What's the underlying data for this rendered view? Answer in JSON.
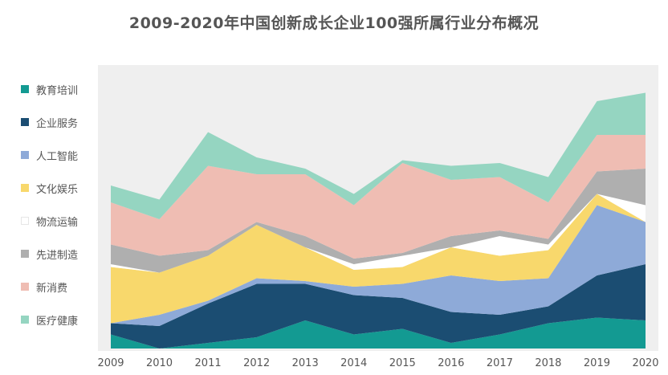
{
  "chart_data": {
    "type": "area",
    "stacked": true,
    "title": "2009-2020年中国创新成长企业100强所属行业分布概况",
    "xlabel": "",
    "ylabel": "",
    "categories": [
      "2009",
      "2010",
      "2011",
      "2012",
      "2013",
      "2014",
      "2015",
      "2016",
      "2017",
      "2018",
      "2019",
      "2020"
    ],
    "ylim": [
      0,
      100
    ],
    "grid": false,
    "legend_position": "left",
    "series": [
      {
        "name": "教育培训",
        "color": "#139a92",
        "values": [
          5,
          0,
          2,
          4,
          10,
          5,
          7,
          2,
          5,
          9,
          11,
          10
        ]
      },
      {
        "name": "企业服务",
        "color": "#1b4d72",
        "values": [
          4,
          8,
          14,
          19,
          13,
          14,
          11,
          11,
          7,
          6,
          15,
          20
        ]
      },
      {
        "name": "人工智能",
        "color": "#8eaad8",
        "values": [
          0,
          4,
          1,
          2,
          1,
          3,
          5,
          13,
          12,
          10,
          25,
          15
        ]
      },
      {
        "name": "文化娱乐",
        "color": "#f8d86c",
        "values": [
          20,
          15,
          16,
          19,
          12,
          6,
          6,
          10,
          9,
          10,
          4,
          0
        ]
      },
      {
        "name": "物流运输",
        "color": "#ffffff",
        "values": [
          1,
          0,
          0,
          0,
          0,
          2,
          4,
          0,
          7,
          2,
          0,
          6
        ]
      },
      {
        "name": "先进制造",
        "color": "#afafaf",
        "values": [
          7,
          6,
          2,
          1,
          4,
          2,
          1,
          4,
          2,
          2,
          8,
          13
        ]
      },
      {
        "name": "新消费",
        "color": "#efbdb3",
        "values": [
          15,
          13,
          30,
          17,
          22,
          19,
          32,
          20,
          19,
          13,
          13,
          12
        ]
      },
      {
        "name": "医疗健康",
        "color": "#95d5c1",
        "values": [
          6,
          7,
          12,
          6,
          2,
          4,
          1,
          5,
          5,
          9,
          12,
          15
        ]
      }
    ]
  }
}
